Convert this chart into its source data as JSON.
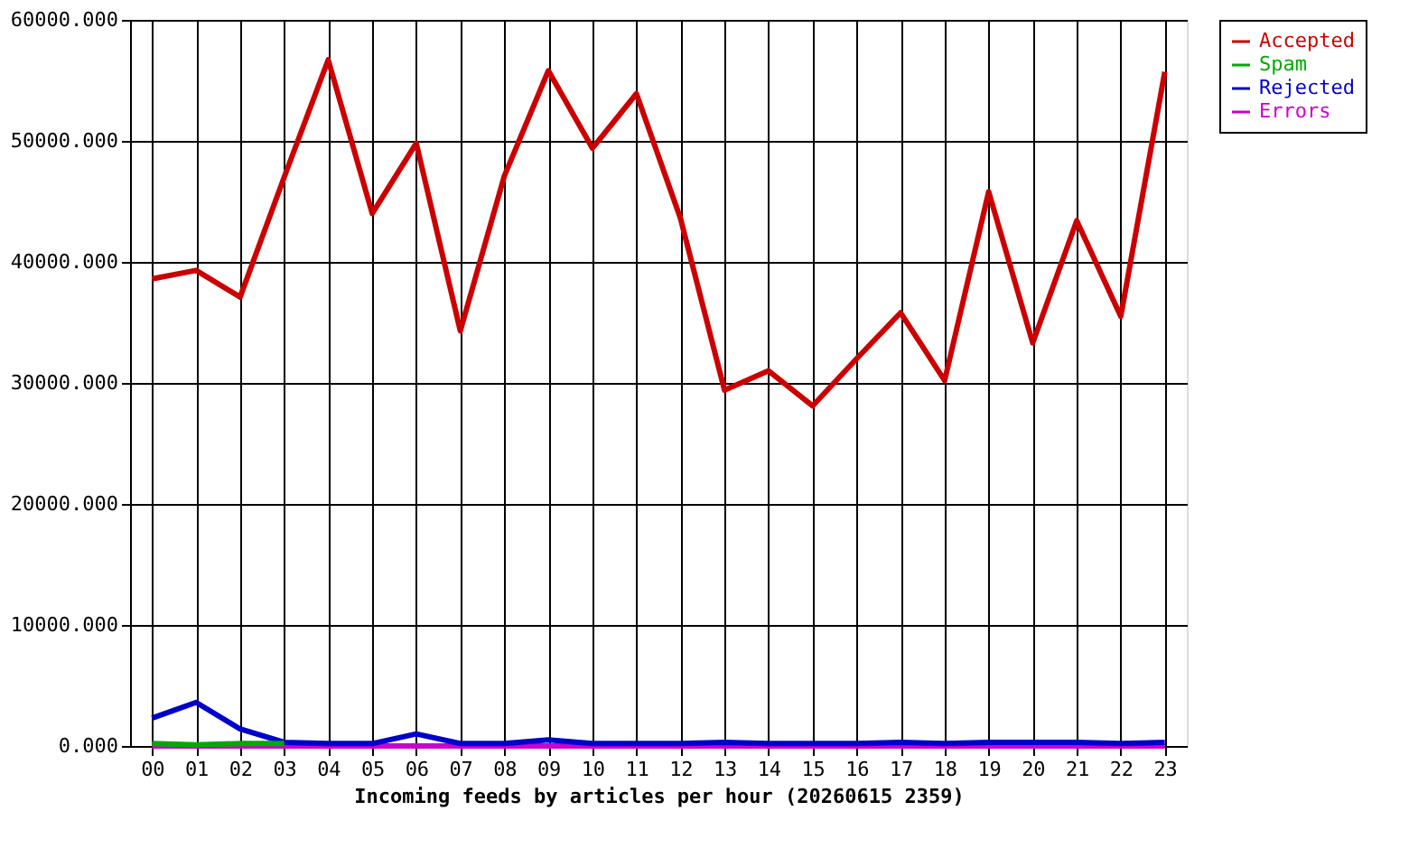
{
  "chart_data": {
    "type": "line",
    "xlabel": "Incoming feeds by articles per hour (20260615 2359)",
    "categories": [
      "00",
      "01",
      "02",
      "03",
      "04",
      "05",
      "06",
      "07",
      "08",
      "09",
      "10",
      "11",
      "12",
      "13",
      "14",
      "15",
      "16",
      "17",
      "18",
      "19",
      "20",
      "21",
      "22",
      "23"
    ],
    "series": [
      {
        "name": "Accepted",
        "color": "#cc0000",
        "values": [
          38600,
          39300,
          37100,
          47000,
          56700,
          44000,
          49800,
          34300,
          47100,
          55800,
          49400,
          53900,
          43600,
          29400,
          31000,
          28100,
          32000,
          35800,
          30200,
          45800,
          33300,
          43400,
          35500,
          55700
        ]
      },
      {
        "name": "Spam",
        "color": "#00aa00",
        "values": [
          200,
          100,
          200,
          200,
          null,
          null,
          null,
          null,
          null,
          null,
          null,
          null,
          null,
          null,
          null,
          null,
          null,
          null,
          null,
          null,
          null,
          null,
          null,
          null
        ]
      },
      {
        "name": "Rejected",
        "color": "#0000cc",
        "values": [
          2300,
          3600,
          1400,
          300,
          200,
          200,
          1000,
          200,
          200,
          500,
          200,
          200,
          200,
          300,
          200,
          200,
          200,
          300,
          200,
          300,
          300,
          300,
          200,
          300
        ]
      },
      {
        "name": "Errors",
        "color": "#cc00cc",
        "values": [
          0,
          0,
          0,
          0,
          0,
          0,
          0,
          0,
          0,
          0,
          0,
          0,
          0,
          0,
          0,
          0,
          0,
          0,
          0,
          0,
          0,
          0,
          0,
          0
        ]
      }
    ],
    "ylim": [
      0,
      60000
    ],
    "yticks": [
      {
        "value": 0,
        "label": "0.000"
      },
      {
        "value": 10000,
        "label": "10000.000"
      },
      {
        "value": 20000,
        "label": "20000.000"
      },
      {
        "value": 30000,
        "label": "30000.000"
      },
      {
        "value": 40000,
        "label": "40000.000"
      },
      {
        "value": 50000,
        "label": "50000.000"
      },
      {
        "value": 60000,
        "label": "60000.000"
      }
    ],
    "grid": true,
    "legend": "top right",
    "marker": "none",
    "line_style": "solid"
  }
}
